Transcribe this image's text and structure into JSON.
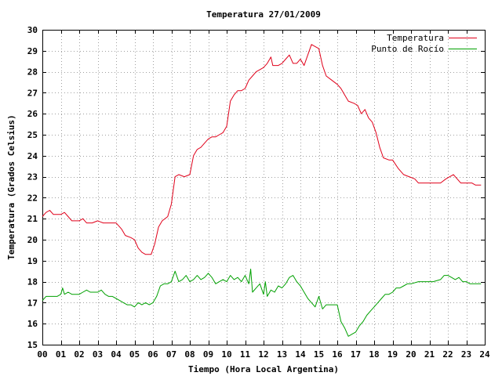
{
  "chart_data": {
    "type": "line",
    "title": "Temperatura 27/01/2009",
    "xlabel": "Tiempo (Hora Local Argentina)",
    "ylabel": "Temperatura (Grados Celsius)",
    "xlim": [
      0,
      24
    ],
    "ylim": [
      15,
      30
    ],
    "grid": true,
    "legend_position": "top-right",
    "x_ticks": [
      "00",
      "01",
      "02",
      "03",
      "04",
      "05",
      "06",
      "07",
      "08",
      "09",
      "10",
      "11",
      "12",
      "13",
      "14",
      "15",
      "16",
      "17",
      "18",
      "19",
      "20",
      "21",
      "22",
      "23",
      "24"
    ],
    "y_ticks": [
      "15",
      "16",
      "17",
      "18",
      "19",
      "20",
      "21",
      "22",
      "23",
      "24",
      "25",
      "26",
      "27",
      "28",
      "29",
      "30"
    ],
    "series": [
      {
        "name": "Temperatura",
        "color": "#e0001a",
        "points": [
          [
            0.0,
            21.1
          ],
          [
            0.2,
            21.3
          ],
          [
            0.4,
            21.4
          ],
          [
            0.6,
            21.2
          ],
          [
            0.8,
            21.2
          ],
          [
            1.0,
            21.2
          ],
          [
            1.2,
            21.3
          ],
          [
            1.4,
            21.1
          ],
          [
            1.6,
            20.9
          ],
          [
            1.8,
            20.9
          ],
          [
            2.0,
            20.9
          ],
          [
            2.2,
            21.0
          ],
          [
            2.4,
            20.8
          ],
          [
            2.7,
            20.8
          ],
          [
            3.0,
            20.9
          ],
          [
            3.3,
            20.8
          ],
          [
            3.6,
            20.8
          ],
          [
            4.0,
            20.8
          ],
          [
            4.3,
            20.5
          ],
          [
            4.5,
            20.2
          ],
          [
            4.8,
            20.1
          ],
          [
            5.0,
            20.0
          ],
          [
            5.2,
            19.6
          ],
          [
            5.4,
            19.4
          ],
          [
            5.6,
            19.3
          ],
          [
            5.9,
            19.3
          ],
          [
            6.1,
            19.8
          ],
          [
            6.3,
            20.6
          ],
          [
            6.5,
            20.9
          ],
          [
            6.8,
            21.1
          ],
          [
            7.0,
            21.7
          ],
          [
            7.2,
            23.0
          ],
          [
            7.4,
            23.1
          ],
          [
            7.7,
            23.0
          ],
          [
            8.0,
            23.1
          ],
          [
            8.2,
            24.0
          ],
          [
            8.4,
            24.3
          ],
          [
            8.6,
            24.4
          ],
          [
            8.8,
            24.6
          ],
          [
            9.0,
            24.8
          ],
          [
            9.2,
            24.9
          ],
          [
            9.4,
            24.9
          ],
          [
            9.6,
            25.0
          ],
          [
            9.8,
            25.1
          ],
          [
            10.0,
            25.4
          ],
          [
            10.2,
            26.6
          ],
          [
            10.4,
            26.9
          ],
          [
            10.6,
            27.1
          ],
          [
            10.8,
            27.1
          ],
          [
            11.0,
            27.2
          ],
          [
            11.2,
            27.6
          ],
          [
            11.4,
            27.8
          ],
          [
            11.6,
            28.0
          ],
          [
            11.8,
            28.1
          ],
          [
            12.0,
            28.2
          ],
          [
            12.2,
            28.4
          ],
          [
            12.4,
            28.7
          ],
          [
            12.5,
            28.3
          ],
          [
            12.8,
            28.3
          ],
          [
            13.0,
            28.4
          ],
          [
            13.2,
            28.6
          ],
          [
            13.4,
            28.8
          ],
          [
            13.6,
            28.4
          ],
          [
            13.8,
            28.4
          ],
          [
            14.0,
            28.6
          ],
          [
            14.2,
            28.3
          ],
          [
            14.4,
            28.8
          ],
          [
            14.6,
            29.3
          ],
          [
            14.8,
            29.2
          ],
          [
            15.0,
            29.1
          ],
          [
            15.2,
            28.3
          ],
          [
            15.4,
            27.8
          ],
          [
            15.7,
            27.6
          ],
          [
            16.0,
            27.4
          ],
          [
            16.2,
            27.2
          ],
          [
            16.4,
            26.9
          ],
          [
            16.6,
            26.6
          ],
          [
            16.9,
            26.5
          ],
          [
            17.1,
            26.4
          ],
          [
            17.3,
            26.0
          ],
          [
            17.5,
            26.2
          ],
          [
            17.7,
            25.8
          ],
          [
            17.9,
            25.6
          ],
          [
            18.1,
            25.1
          ],
          [
            18.3,
            24.4
          ],
          [
            18.5,
            23.9
          ],
          [
            18.8,
            23.8
          ],
          [
            19.0,
            23.8
          ],
          [
            19.3,
            23.4
          ],
          [
            19.6,
            23.1
          ],
          [
            19.9,
            23.0
          ],
          [
            20.2,
            22.9
          ],
          [
            20.4,
            22.7
          ],
          [
            20.8,
            22.7
          ],
          [
            21.2,
            22.7
          ],
          [
            21.6,
            22.7
          ],
          [
            21.9,
            22.9
          ],
          [
            22.1,
            23.0
          ],
          [
            22.3,
            23.1
          ],
          [
            22.5,
            22.9
          ],
          [
            22.7,
            22.7
          ],
          [
            23.0,
            22.7
          ],
          [
            23.3,
            22.7
          ],
          [
            23.5,
            22.6
          ],
          [
            23.8,
            22.6
          ]
        ]
      },
      {
        "name": "Punto de Rocío",
        "color": "#00a000",
        "points": [
          [
            0.0,
            17.1
          ],
          [
            0.2,
            17.3
          ],
          [
            0.4,
            17.3
          ],
          [
            0.6,
            17.3
          ],
          [
            0.8,
            17.3
          ],
          [
            1.0,
            17.4
          ],
          [
            1.1,
            17.7
          ],
          [
            1.2,
            17.4
          ],
          [
            1.4,
            17.5
          ],
          [
            1.6,
            17.4
          ],
          [
            1.8,
            17.4
          ],
          [
            2.0,
            17.4
          ],
          [
            2.2,
            17.5
          ],
          [
            2.4,
            17.6
          ],
          [
            2.6,
            17.5
          ],
          [
            2.8,
            17.5
          ],
          [
            3.0,
            17.5
          ],
          [
            3.2,
            17.6
          ],
          [
            3.4,
            17.4
          ],
          [
            3.6,
            17.3
          ],
          [
            3.8,
            17.3
          ],
          [
            4.0,
            17.2
          ],
          [
            4.2,
            17.1
          ],
          [
            4.4,
            17.0
          ],
          [
            4.6,
            16.9
          ],
          [
            4.8,
            16.9
          ],
          [
            5.0,
            16.8
          ],
          [
            5.2,
            17.0
          ],
          [
            5.4,
            16.9
          ],
          [
            5.6,
            17.0
          ],
          [
            5.8,
            16.9
          ],
          [
            6.0,
            17.0
          ],
          [
            6.2,
            17.3
          ],
          [
            6.4,
            17.8
          ],
          [
            6.6,
            17.9
          ],
          [
            6.8,
            17.9
          ],
          [
            7.0,
            18.0
          ],
          [
            7.2,
            18.5
          ],
          [
            7.4,
            18.0
          ],
          [
            7.6,
            18.1
          ],
          [
            7.8,
            18.3
          ],
          [
            8.0,
            18.0
          ],
          [
            8.2,
            18.1
          ],
          [
            8.4,
            18.3
          ],
          [
            8.6,
            18.1
          ],
          [
            8.8,
            18.2
          ],
          [
            9.0,
            18.4
          ],
          [
            9.2,
            18.2
          ],
          [
            9.4,
            17.9
          ],
          [
            9.6,
            18.0
          ],
          [
            9.8,
            18.1
          ],
          [
            10.0,
            18.0
          ],
          [
            10.2,
            18.3
          ],
          [
            10.4,
            18.1
          ],
          [
            10.6,
            18.2
          ],
          [
            10.8,
            18.0
          ],
          [
            11.0,
            18.3
          ],
          [
            11.2,
            17.9
          ],
          [
            11.3,
            18.6
          ],
          [
            11.4,
            17.5
          ],
          [
            11.6,
            17.7
          ],
          [
            11.8,
            17.9
          ],
          [
            12.0,
            17.4
          ],
          [
            12.1,
            18.0
          ],
          [
            12.2,
            17.3
          ],
          [
            12.4,
            17.6
          ],
          [
            12.6,
            17.5
          ],
          [
            12.8,
            17.8
          ],
          [
            13.0,
            17.7
          ],
          [
            13.2,
            17.9
          ],
          [
            13.4,
            18.2
          ],
          [
            13.6,
            18.3
          ],
          [
            13.8,
            18.0
          ],
          [
            14.0,
            17.8
          ],
          [
            14.2,
            17.5
          ],
          [
            14.4,
            17.2
          ],
          [
            14.6,
            17.0
          ],
          [
            14.8,
            16.8
          ],
          [
            15.0,
            17.3
          ],
          [
            15.2,
            16.7
          ],
          [
            15.4,
            16.9
          ],
          [
            15.6,
            16.9
          ],
          [
            15.8,
            16.9
          ],
          [
            16.0,
            16.9
          ],
          [
            16.2,
            16.1
          ],
          [
            16.4,
            15.8
          ],
          [
            16.6,
            15.4
          ],
          [
            16.8,
            15.5
          ],
          [
            17.0,
            15.6
          ],
          [
            17.2,
            15.9
          ],
          [
            17.4,
            16.1
          ],
          [
            17.6,
            16.4
          ],
          [
            17.8,
            16.6
          ],
          [
            18.0,
            16.8
          ],
          [
            18.2,
            17.0
          ],
          [
            18.4,
            17.2
          ],
          [
            18.6,
            17.4
          ],
          [
            18.8,
            17.4
          ],
          [
            19.0,
            17.5
          ],
          [
            19.2,
            17.7
          ],
          [
            19.4,
            17.7
          ],
          [
            19.6,
            17.8
          ],
          [
            19.8,
            17.9
          ],
          [
            20.0,
            17.9
          ],
          [
            20.4,
            18.0
          ],
          [
            20.8,
            18.0
          ],
          [
            21.2,
            18.0
          ],
          [
            21.6,
            18.1
          ],
          [
            21.8,
            18.3
          ],
          [
            22.0,
            18.3
          ],
          [
            22.2,
            18.2
          ],
          [
            22.4,
            18.1
          ],
          [
            22.6,
            18.2
          ],
          [
            22.8,
            18.0
          ],
          [
            23.0,
            18.0
          ],
          [
            23.2,
            17.9
          ],
          [
            23.5,
            17.9
          ],
          [
            23.8,
            17.9
          ]
        ]
      }
    ]
  }
}
